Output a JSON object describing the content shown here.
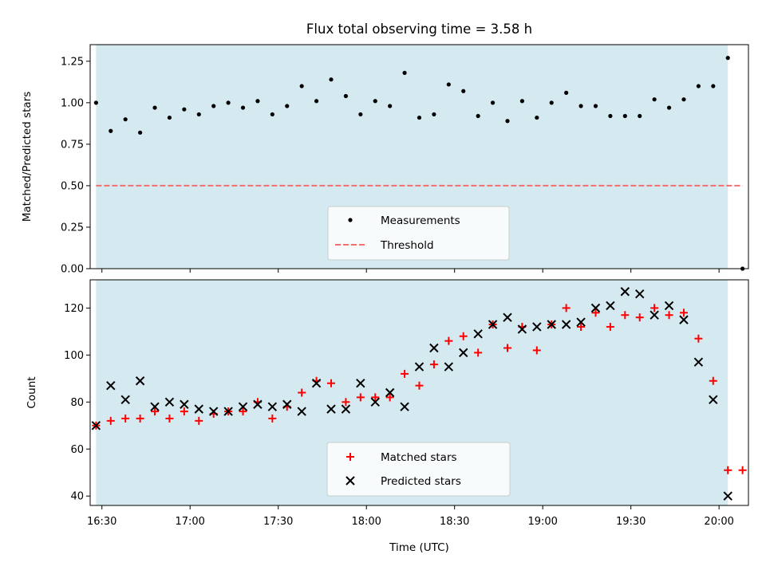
{
  "chart_data": [
    {
      "type": "scatter",
      "title": "Flux total observing time = 3.58 h",
      "xlabel": "",
      "ylabel": "Matched/Predicted stars",
      "ylim": [
        0,
        1.35
      ],
      "xlim": [
        "16:26",
        "20:10"
      ],
      "yticks": [
        "0.00",
        "0.25",
        "0.50",
        "0.75",
        "1.00",
        "1.25"
      ],
      "grid": false,
      "legend_position": "lower-center",
      "observing_window": {
        "start": "16:28",
        "end": "20:03",
        "color": "#d4eaf0"
      },
      "threshold": {
        "name": "Threshold",
        "value": 0.5,
        "color": "#f07070",
        "style": "dashed",
        "x_start": "16:28",
        "x_end": "20:08"
      },
      "series": [
        {
          "name": "Measurements",
          "color": "#000000",
          "marker": "dot",
          "points": [
            [
              "16:28",
              1.0
            ],
            [
              "16:33",
              0.83
            ],
            [
              "16:38",
              0.9
            ],
            [
              "16:43",
              0.82
            ],
            [
              "16:48",
              0.97
            ],
            [
              "16:53",
              0.91
            ],
            [
              "16:58",
              0.96
            ],
            [
              "17:03",
              0.93
            ],
            [
              "17:08",
              0.98
            ],
            [
              "17:13",
              1.0
            ],
            [
              "17:18",
              0.97
            ],
            [
              "17:23",
              1.01
            ],
            [
              "17:28",
              0.93
            ],
            [
              "17:33",
              0.98
            ],
            [
              "17:38",
              1.1
            ],
            [
              "17:43",
              1.01
            ],
            [
              "17:48",
              1.14
            ],
            [
              "17:53",
              1.04
            ],
            [
              "17:58",
              0.93
            ],
            [
              "18:03",
              1.01
            ],
            [
              "18:08",
              0.98
            ],
            [
              "18:13",
              1.18
            ],
            [
              "18:18",
              0.91
            ],
            [
              "18:23",
              0.93
            ],
            [
              "18:28",
              1.11
            ],
            [
              "18:33",
              1.07
            ],
            [
              "18:38",
              0.92
            ],
            [
              "18:43",
              1.0
            ],
            [
              "18:48",
              0.89
            ],
            [
              "18:53",
              1.01
            ],
            [
              "18:58",
              0.91
            ],
            [
              "19:03",
              1.0
            ],
            [
              "19:08",
              1.06
            ],
            [
              "19:13",
              0.98
            ],
            [
              "19:18",
              0.98
            ],
            [
              "19:23",
              0.92
            ],
            [
              "19:28",
              0.92
            ],
            [
              "19:33",
              0.92
            ],
            [
              "19:38",
              1.02
            ],
            [
              "19:43",
              0.97
            ],
            [
              "19:48",
              1.02
            ],
            [
              "19:53",
              1.1
            ],
            [
              "19:58",
              1.1
            ],
            [
              "20:03",
              1.27
            ],
            [
              "20:08",
              0.0
            ]
          ]
        }
      ]
    },
    {
      "type": "scatter",
      "title": "",
      "xlabel": "Time (UTC)",
      "ylabel": "Count",
      "ylim": [
        36,
        132
      ],
      "xlim": [
        "16:26",
        "20:10"
      ],
      "yticks": [
        "40",
        "60",
        "80",
        "100",
        "120"
      ],
      "xticks": [
        "16:30",
        "17:00",
        "17:30",
        "18:00",
        "18:30",
        "19:00",
        "19:30",
        "20:00"
      ],
      "grid": false,
      "legend_position": "lower-center",
      "observing_window": {
        "start": "16:28",
        "end": "20:03",
        "color": "#d4eaf0"
      },
      "series": [
        {
          "name": "Matched stars",
          "color": "#ff0000",
          "marker": "plus",
          "points": [
            [
              "16:28",
              70
            ],
            [
              "16:33",
              72
            ],
            [
              "16:38",
              73
            ],
            [
              "16:43",
              73
            ],
            [
              "16:48",
              76
            ],
            [
              "16:53",
              73
            ],
            [
              "16:58",
              76
            ],
            [
              "17:03",
              72
            ],
            [
              "17:08",
              75
            ],
            [
              "17:13",
              76
            ],
            [
              "17:18",
              76
            ],
            [
              "17:23",
              80
            ],
            [
              "17:28",
              73
            ],
            [
              "17:33",
              78
            ],
            [
              "17:38",
              84
            ],
            [
              "17:43",
              89
            ],
            [
              "17:48",
              88
            ],
            [
              "17:53",
              80
            ],
            [
              "17:58",
              82
            ],
            [
              "18:03",
              82
            ],
            [
              "18:08",
              82
            ],
            [
              "18:13",
              92
            ],
            [
              "18:18",
              87
            ],
            [
              "18:23",
              96
            ],
            [
              "18:28",
              106
            ],
            [
              "18:33",
              108
            ],
            [
              "18:38",
              101
            ],
            [
              "18:43",
              113
            ],
            [
              "18:48",
              103
            ],
            [
              "18:53",
              112
            ],
            [
              "18:58",
              102
            ],
            [
              "19:03",
              113
            ],
            [
              "19:08",
              120
            ],
            [
              "19:13",
              112
            ],
            [
              "19:18",
              118
            ],
            [
              "19:23",
              112
            ],
            [
              "19:28",
              117
            ],
            [
              "19:33",
              116
            ],
            [
              "19:38",
              120
            ],
            [
              "19:43",
              117
            ],
            [
              "19:48",
              118
            ],
            [
              "19:53",
              107
            ],
            [
              "19:58",
              89
            ],
            [
              "20:03",
              51
            ],
            [
              "20:08",
              51
            ]
          ]
        },
        {
          "name": "Predicted stars",
          "color": "#000000",
          "marker": "x",
          "points": [
            [
              "16:28",
              70
            ],
            [
              "16:33",
              87
            ],
            [
              "16:38",
              81
            ],
            [
              "16:43",
              89
            ],
            [
              "16:48",
              78
            ],
            [
              "16:53",
              80
            ],
            [
              "16:58",
              79
            ],
            [
              "17:03",
              77
            ],
            [
              "17:08",
              76
            ],
            [
              "17:13",
              76
            ],
            [
              "17:18",
              78
            ],
            [
              "17:23",
              79
            ],
            [
              "17:28",
              78
            ],
            [
              "17:33",
              79
            ],
            [
              "17:38",
              76
            ],
            [
              "17:43",
              88
            ],
            [
              "17:48",
              77
            ],
            [
              "17:53",
              77
            ],
            [
              "17:58",
              88
            ],
            [
              "18:03",
              80
            ],
            [
              "18:08",
              84
            ],
            [
              "18:13",
              78
            ],
            [
              "18:18",
              95
            ],
            [
              "18:23",
              103
            ],
            [
              "18:28",
              95
            ],
            [
              "18:33",
              101
            ],
            [
              "18:38",
              109
            ],
            [
              "18:43",
              113
            ],
            [
              "18:48",
              116
            ],
            [
              "18:53",
              111
            ],
            [
              "18:58",
              112
            ],
            [
              "19:03",
              113
            ],
            [
              "19:08",
              113
            ],
            [
              "19:13",
              114
            ],
            [
              "19:18",
              120
            ],
            [
              "19:23",
              121
            ],
            [
              "19:28",
              127
            ],
            [
              "19:33",
              126
            ],
            [
              "19:38",
              117
            ],
            [
              "19:43",
              121
            ],
            [
              "19:48",
              115
            ],
            [
              "19:53",
              97
            ],
            [
              "19:58",
              81
            ],
            [
              "20:03",
              40
            ]
          ]
        }
      ]
    }
  ]
}
